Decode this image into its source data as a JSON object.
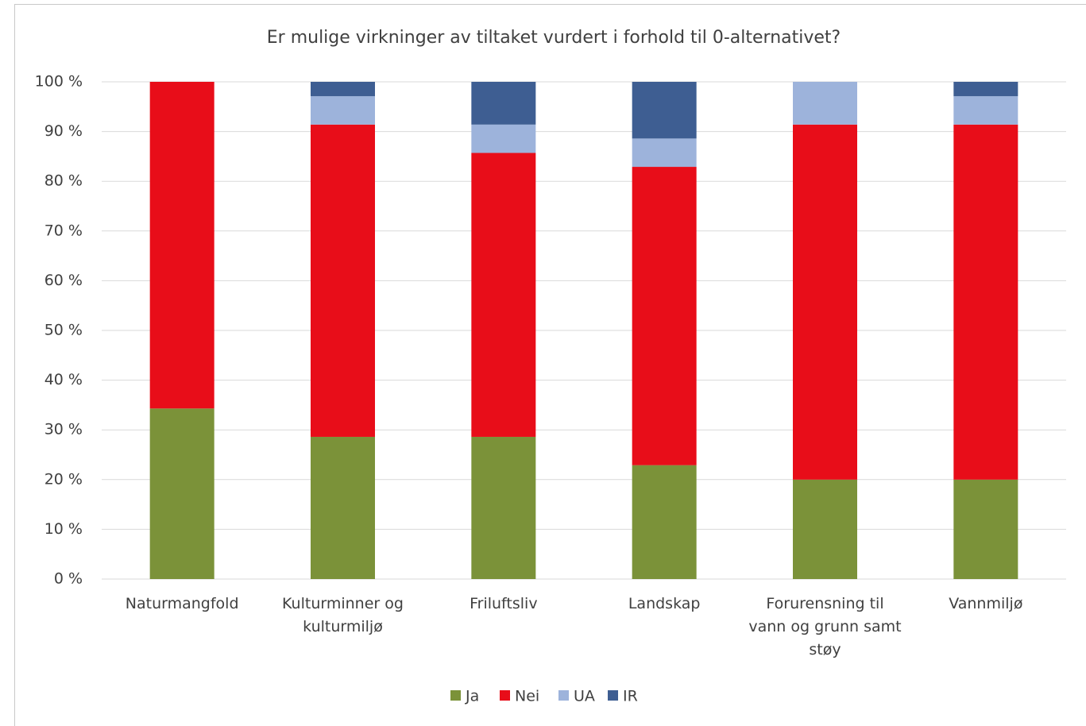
{
  "chart_data": {
    "type": "bar",
    "stacked": true,
    "title": "Er mulige virkninger av tiltaket vurdert i forhold til 0-alternativet?",
    "categories": [
      "Naturmangfold",
      "Kulturminner og kulturmiljø",
      "Friluftsliv",
      "Landskap",
      "Forurensning til vann og grunn samt støy",
      "Vannmiljø"
    ],
    "series": [
      {
        "name": "Ja",
        "color": "#7b9239",
        "values": [
          34.3,
          28.6,
          28.6,
          22.9,
          20,
          20
        ]
      },
      {
        "name": "Nei",
        "color": "#e80d19",
        "values": [
          65.7,
          62.8,
          57.1,
          60.0,
          71.4,
          71.4
        ]
      },
      {
        "name": "UA",
        "color": "#9db3db",
        "values": [
          0,
          5.7,
          5.7,
          5.7,
          8.6,
          5.7
        ]
      },
      {
        "name": "IR",
        "color": "#3e5e92",
        "values": [
          0,
          2.9,
          8.6,
          11.4,
          0,
          2.9
        ]
      }
    ],
    "ylim": [
      0,
      100
    ],
    "yticks": [
      {
        "value": 0,
        "label": "0 %"
      },
      {
        "value": 10,
        "label": "10 %"
      },
      {
        "value": 20,
        "label": "20 %"
      },
      {
        "value": 30,
        "label": "30 %"
      },
      {
        "value": 40,
        "label": "40 %"
      },
      {
        "value": 50,
        "label": "50 %"
      },
      {
        "value": 60,
        "label": "60 %"
      },
      {
        "value": 70,
        "label": "70 %"
      },
      {
        "value": 80,
        "label": "80 %"
      },
      {
        "value": 90,
        "label": "90 %"
      },
      {
        "value": 100,
        "label": "100 %"
      }
    ],
    "grid": true,
    "legend": "bottom"
  }
}
